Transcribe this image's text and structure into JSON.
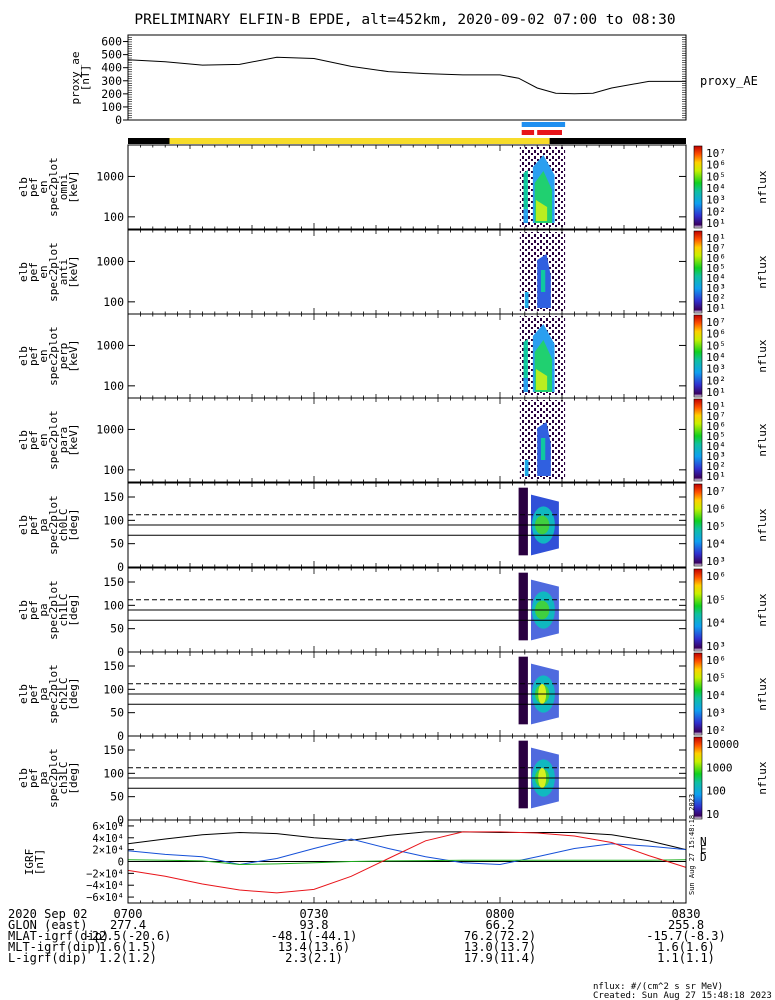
{
  "header": {
    "title": "PRELIMINARY ELFIN-B EPDE, alt=452km, 2020-09-02 07:00 to 08:30"
  },
  "colors": {
    "red": "#e8141a",
    "blue": "#1550d8",
    "green": "#1fb01f",
    "black": "#000000",
    "yellow": "#f7dc2a",
    "bar_blue": "#1f8ff0"
  },
  "time_axis": {
    "start": "0700",
    "end": "0830",
    "tick_labels": [
      "0700",
      "0730",
      "0800",
      "0830"
    ],
    "tick_minutes": [
      0,
      30,
      60,
      90
    ]
  },
  "chart_data": [
    {
      "panel": "proxy_ae",
      "type": "line",
      "ylabel": [
        "proxy_ae",
        "[nT]"
      ],
      "legend": "proxy_AE",
      "yticks": [
        0,
        100,
        200,
        300,
        400,
        500,
        600
      ],
      "ylim": [
        0,
        650
      ],
      "x": [
        0,
        6,
        12,
        18,
        24,
        30,
        36,
        42,
        48,
        54,
        60,
        63,
        66,
        69,
        72,
        75,
        78,
        84,
        90
      ],
      "values": [
        460,
        445,
        420,
        425,
        480,
        470,
        410,
        370,
        355,
        345,
        345,
        320,
        245,
        205,
        200,
        205,
        245,
        295,
        295
      ]
    },
    {
      "panel": "mode_bar",
      "type": "bar",
      "segments": [
        {
          "x0": 0,
          "x1": 6.7,
          "color": "black"
        },
        {
          "x0": 6.7,
          "x1": 68,
          "color": "yellow"
        },
        {
          "x0": 68,
          "x1": 90,
          "color": "black"
        }
      ],
      "markers": [
        {
          "x0": 63.5,
          "x1": 70.5,
          "row": 1,
          "color": "bar_blue"
        },
        {
          "x0": 63.5,
          "x1": 65.5,
          "row": 2,
          "color": "red"
        },
        {
          "x0": 66,
          "x1": 70,
          "row": 2,
          "color": "red"
        }
      ]
    },
    {
      "panel": "omni",
      "type": "heatmap",
      "ylabel": [
        "elb",
        "pef",
        "en",
        "spec2plot",
        "omni",
        "[keV]"
      ],
      "ylog": true,
      "yticks": [
        100,
        1000
      ],
      "ylim": [
        50,
        6000
      ],
      "colorbar": {
        "title": "nflux",
        "labels": [
          "10⁷",
          "10⁶",
          "10⁵",
          "10⁴",
          "10³",
          "10²",
          "10¹"
        ]
      }
    },
    {
      "panel": "anti",
      "type": "heatmap",
      "ylabel": [
        "elb",
        "pef",
        "en",
        "spec2plot",
        "anti",
        "[keV]"
      ],
      "ylog": true,
      "yticks": [
        100,
        1000
      ],
      "ylim": [
        50,
        6000
      ],
      "colorbar": {
        "title": "nflux",
        "labels": [
          "10¹",
          "10⁷",
          "10⁶",
          "10⁵",
          "10⁴",
          "10³",
          "10²",
          "10¹"
        ]
      }
    },
    {
      "panel": "perp",
      "type": "heatmap",
      "ylabel": [
        "elb",
        "pef",
        "en",
        "spec2plot",
        "perp",
        "[keV]"
      ],
      "ylog": true,
      "yticks": [
        100,
        1000
      ],
      "ylim": [
        50,
        6000
      ],
      "colorbar": {
        "title": "nflux",
        "labels": [
          "10⁷",
          "10⁶",
          "10⁵",
          "10⁴",
          "10³",
          "10²",
          "10¹"
        ]
      }
    },
    {
      "panel": "para",
      "type": "heatmap",
      "ylabel": [
        "elb",
        "pef",
        "en",
        "spec2plot",
        "para",
        "[keV]"
      ],
      "ylog": true,
      "yticks": [
        100,
        1000
      ],
      "ylim": [
        50,
        6000
      ],
      "colorbar": {
        "title": "nflux",
        "labels": [
          "10¹",
          "10⁷",
          "10⁶",
          "10⁵",
          "10⁴",
          "10³",
          "10²",
          "10¹"
        ]
      }
    },
    {
      "panel": "ch0LC",
      "type": "heatmap",
      "ylabel": [
        "elb",
        "pef",
        "pa",
        "spec2plot",
        "ch0LC",
        "[deg]"
      ],
      "yticks": [
        0,
        50,
        100,
        150
      ],
      "ylim": [
        0,
        180
      ],
      "hlines_solid": [
        68,
        90
      ],
      "hlines_dashed": [
        112
      ],
      "colorbar": {
        "title": "nflux",
        "labels": [
          "10⁷",
          "10⁶",
          "10⁵",
          "10⁴",
          "10³"
        ]
      }
    },
    {
      "panel": "ch1LC",
      "type": "heatmap",
      "ylabel": [
        "elb",
        "pef",
        "pa",
        "spec2plot",
        "ch1LC",
        "[deg]"
      ],
      "yticks": [
        0,
        50,
        100,
        150
      ],
      "ylim": [
        0,
        180
      ],
      "hlines_solid": [
        68,
        90
      ],
      "hlines_dashed": [
        112
      ],
      "colorbar": {
        "title": "nflux",
        "labels": [
          "10⁶",
          "10⁵",
          "10⁴",
          "10³"
        ]
      }
    },
    {
      "panel": "ch2LC",
      "type": "heatmap",
      "ylabel": [
        "elb",
        "pef",
        "pa",
        "spec2plot",
        "ch2LC",
        "[deg]"
      ],
      "yticks": [
        0,
        50,
        100,
        150
      ],
      "ylim": [
        0,
        180
      ],
      "hlines_solid": [
        68,
        90
      ],
      "hlines_dashed": [
        112
      ],
      "colorbar": {
        "title": "nflux",
        "labels": [
          "10⁶",
          "10⁵",
          "10⁴",
          "10³",
          "10²"
        ]
      }
    },
    {
      "panel": "ch3LC",
      "type": "heatmap",
      "ylabel": [
        "elb",
        "pef",
        "pa",
        "spec2plot",
        "ch3LC",
        "[deg]"
      ],
      "yticks": [
        0,
        50,
        100,
        150
      ],
      "ylim": [
        0,
        180
      ],
      "hlines_solid": [
        68,
        90
      ],
      "hlines_dashed": [
        112
      ],
      "colorbar": {
        "title": "nflux",
        "labels": [
          "10000",
          "1000",
          "100",
          "10"
        ]
      }
    },
    {
      "panel": "igrf",
      "type": "line",
      "ylabel": [
        "IGRF",
        "[nT]"
      ],
      "ylim": [
        -70000,
        70000
      ],
      "yticks": [
        60000,
        40000,
        20000,
        0,
        -20000,
        -40000,
        -60000
      ],
      "ytick_labels": [
        "6×10⁴",
        "4×10⁴",
        "2×10⁴",
        "0",
        "−2×10⁴",
        "−4×10⁴",
        "−6×10⁴"
      ],
      "legend": [
        "N",
        "E",
        "D"
      ],
      "x": [
        0,
        6,
        12,
        18,
        24,
        30,
        36,
        42,
        48,
        54,
        60,
        66,
        72,
        78,
        84,
        90
      ],
      "series": [
        {
          "color": "black",
          "values": [
            30000,
            38000,
            45000,
            49000,
            47000,
            40000,
            36000,
            44000,
            50000,
            50000,
            49000,
            49000,
            49000,
            45000,
            35000,
            20000
          ]
        },
        {
          "color": "blue",
          "values": [
            18000,
            12000,
            8000,
            -5000,
            5000,
            22000,
            38000,
            22000,
            8000,
            -2000,
            -5000,
            8000,
            22000,
            30000,
            26000,
            20000
          ]
        },
        {
          "color": "green",
          "values": [
            3000,
            2000,
            1000,
            -5000,
            -4000,
            -2000,
            0,
            1000,
            1500,
            2000,
            2000,
            2000,
            2000,
            2000,
            2000,
            3000
          ]
        },
        {
          "color": "red",
          "values": [
            -15000,
            -25000,
            -38000,
            -48000,
            -53000,
            -47000,
            -25000,
            5000,
            35000,
            50000,
            50000,
            48000,
            43000,
            32000,
            10000,
            -10000
          ]
        }
      ]
    }
  ],
  "ephemeris": {
    "rows": [
      {
        "label": "2020 Sep 02",
        "values": [
          "0700",
          "0730",
          "0800",
          "0830"
        ]
      },
      {
        "label": "GLON (east)",
        "values": [
          "277.4",
          "93.8",
          "66.2",
          "255.8"
        ]
      },
      {
        "label": "MLAT-igrf(dip)",
        "values": [
          "-22.5(-20.6)",
          "-48.1(-44.1)",
          "76.2(72.2)",
          "-15.7(-8.3)"
        ]
      },
      {
        "label": "MLT-igrf(dip)",
        "values": [
          "1.6(1.5)",
          "13.4(13.6)",
          "13.0(13.7)",
          "1.6(1.6)"
        ]
      },
      {
        "label": "L-igrf(dip)",
        "values": [
          "1.2(1.2)",
          "2.3(2.1)",
          "17.9(11.4)",
          "1.1(1.1)"
        ]
      }
    ]
  },
  "footer": {
    "units": "nflux: #/(cm^2 s sr MeV)",
    "created": "Created: Sun Aug 27 15:48:18 2023",
    "side_stamp": "Sun Aug 27 15:48:18 2023"
  }
}
